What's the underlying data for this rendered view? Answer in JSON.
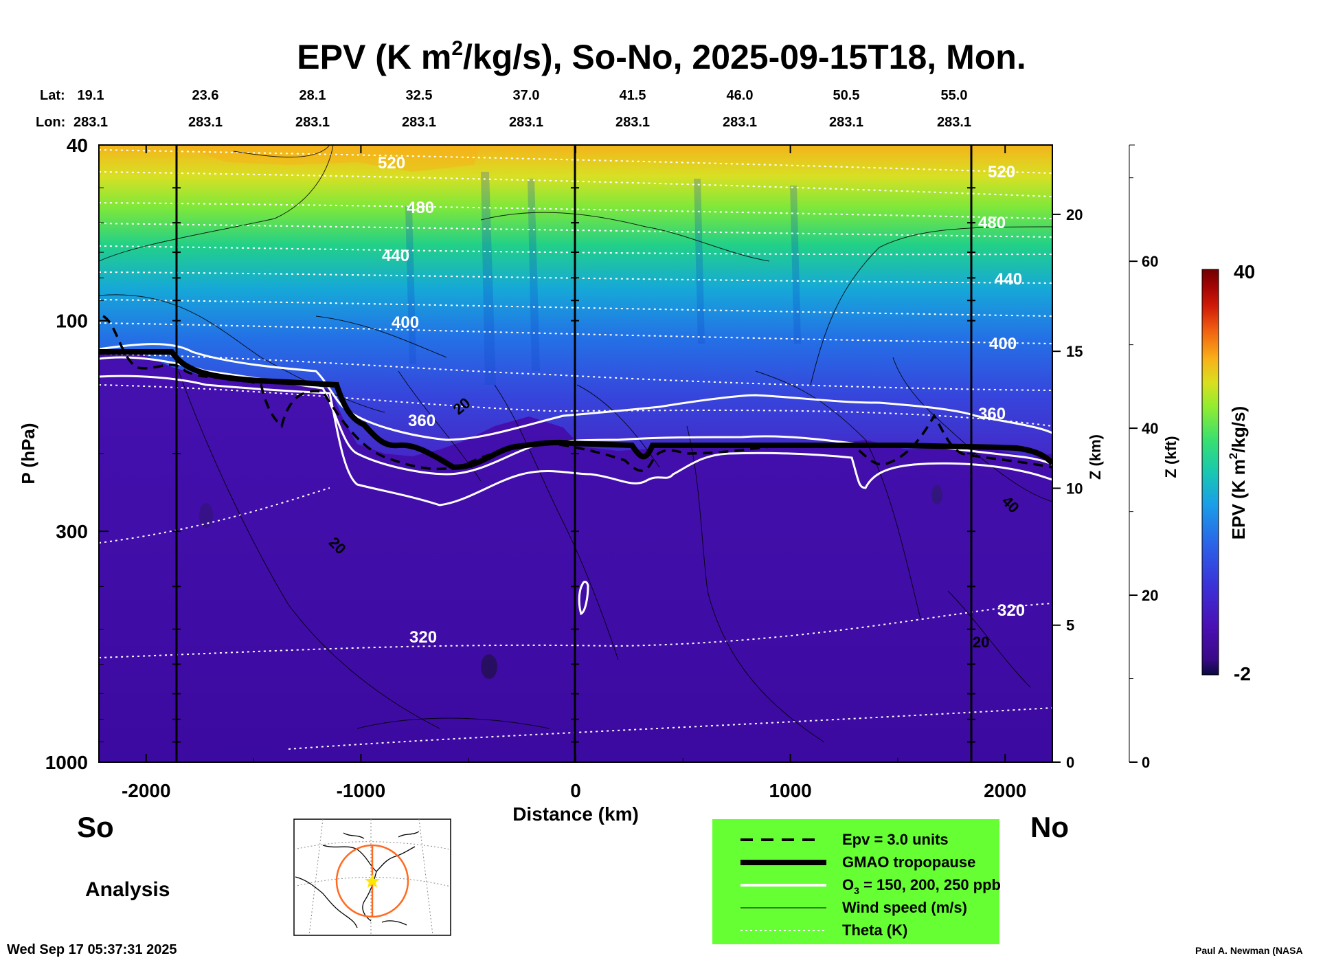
{
  "chart_data": {
    "type": "heatmap",
    "title_main": "EPV (K m",
    "title_sup": "2",
    "title_rest": "/kg/s), So-No, 2025-09-15T18, Mon.",
    "lat_label": "Lat:",
    "lon_label": "Lon:",
    "lat_ticks": [
      "19.1",
      "23.6",
      "28.1",
      "32.5",
      "37.0",
      "41.5",
      "46.0",
      "50.5",
      "55.0"
    ],
    "lon_ticks": [
      "283.1",
      "283.1",
      "283.1",
      "283.1",
      "283.1",
      "283.1",
      "283.1",
      "283.1",
      "283.1"
    ],
    "xlabel": "Distance (km)",
    "x_ticks": [
      -2000,
      -1000,
      0,
      1000,
      2000
    ],
    "x_tick_labels": [
      "-2000",
      "-1000",
      "0",
      "1000",
      "2000"
    ],
    "xlim": [
      -2220,
      2220
    ],
    "ylabel": "P (hPa)",
    "y_scale": "log",
    "ylim": [
      1000,
      40
    ],
    "y_ticks": [
      40,
      100,
      300,
      1000
    ],
    "y_tick_labels": [
      "40",
      "100",
      "300",
      "1000"
    ],
    "z_km_label": "Z (km)",
    "z_km_ticks": [
      0,
      5,
      10,
      15,
      20
    ],
    "z_km_tick_labels": [
      "0",
      "5",
      "10",
      "15",
      "20"
    ],
    "z_kft_label": "Z (kft)",
    "z_kft_ticks": [
      0,
      20,
      40,
      60
    ],
    "z_kft_tick_labels": [
      "0",
      "20",
      "40",
      "60"
    ],
    "colorbar": {
      "label_main": "EPV (K m",
      "label_sup": "2",
      "label_rest": "/kg/s)",
      "min": -2,
      "max": 40,
      "min_label": "-2",
      "max_label": "40",
      "colors": [
        "#0a0a40",
        "#3a0a88",
        "#4a10b4",
        "#3a32d8",
        "#2a62e8",
        "#1a9ee8",
        "#18c8b0",
        "#38e070",
        "#90ec30",
        "#d8e020",
        "#f8b018",
        "#f06010",
        "#d01a08",
        "#a00404",
        "#700000"
      ]
    },
    "theta_labels": [
      "520",
      "480",
      "440",
      "400",
      "360",
      "320",
      "520",
      "480",
      "440",
      "400",
      "360",
      "320"
    ],
    "wind_labels": [
      "20",
      "20",
      "40",
      "20"
    ],
    "so_label": "So",
    "no_label": "No",
    "analysis_label": "Analysis",
    "legend": [
      {
        "label": "Epv = 3.0 units",
        "style": "dashed"
      },
      {
        "label": "GMAO tropopause",
        "style": "thick"
      },
      {
        "label_pre": "O",
        "label_sub": "3",
        "label_post": " = 150, 200, 250 ppb",
        "style": "white"
      },
      {
        "label": "Wind speed (m/s)",
        "style": "thin"
      },
      {
        "label": "Theta (K)",
        "style": "dotted"
      }
    ],
    "legend_bg": "#66ff33",
    "timestamp": "Wed Sep 17 05:37:31 2025",
    "credit": "Paul A. Newman (NASA"
  }
}
